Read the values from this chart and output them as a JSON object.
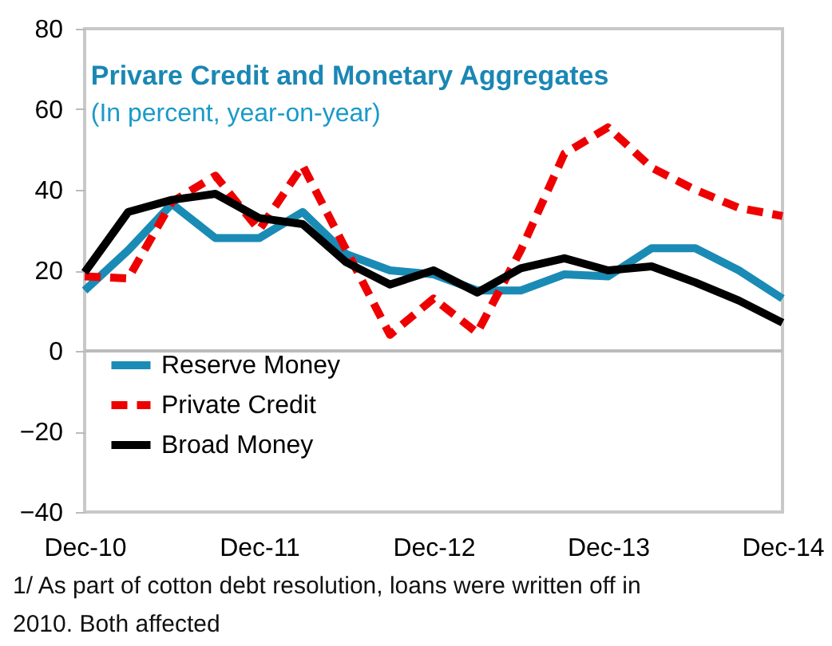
{
  "chart_data": {
    "type": "line",
    "title": "Privare Credit and Monetary Aggregates",
    "subtitle": "(In percent, year-on-year)",
    "categories": [
      "Dec-10",
      null,
      null,
      null,
      "Dec-11",
      null,
      null,
      null,
      "Dec-12",
      null,
      null,
      null,
      "Dec-13",
      null,
      null,
      null,
      "Dec-14"
    ],
    "series": [
      {
        "name": "Reserve Money",
        "color": "#1a8bb5",
        "line_style": "solid",
        "values": [
          15,
          25,
          36.5,
          28,
          28,
          34.5,
          24,
          20,
          19,
          15,
          15,
          19,
          18.5,
          25.5,
          25.5,
          20,
          13
        ]
      },
      {
        "name": "Private Credit",
        "color": "#ee0000",
        "line_style": "dashed",
        "values": [
          18.5,
          18,
          37,
          43.5,
          30,
          46,
          25,
          4,
          13,
          4.5,
          25,
          49,
          55.5,
          45.5,
          40,
          35.5,
          33.5
        ]
      },
      {
        "name": "Broad Money",
        "color": "#000000",
        "line_style": "solid",
        "values": [
          19.5,
          34.5,
          37.5,
          39,
          33,
          31.5,
          22,
          16.5,
          20,
          14.5,
          20.5,
          23,
          20,
          21,
          17,
          12.5,
          7
        ]
      }
    ],
    "ylim": [
      -40,
      80
    ],
    "yticks": [
      -40,
      -20,
      0,
      20,
      40,
      60,
      80
    ],
    "grid": false,
    "legend": "bottom left",
    "marker": "none",
    "ref_lines": [
      {
        "axis": "y",
        "value": 0
      }
    ],
    "annotations": [
      "1/  As part of cotton debt resolution, loans were written off in 2010. Both affected"
    ]
  }
}
